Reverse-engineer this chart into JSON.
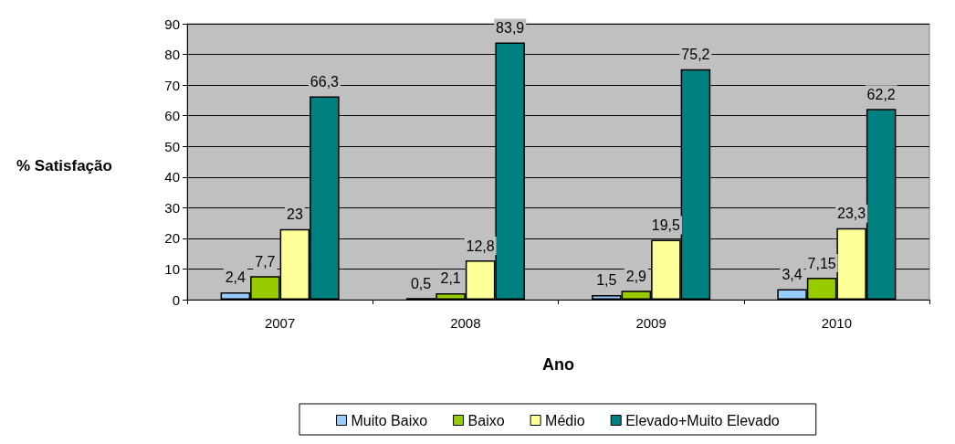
{
  "chart_data": {
    "type": "bar",
    "xlabel": "Ano",
    "ylabel": "% Satisfação",
    "categories": [
      "2007",
      "2008",
      "2009",
      "2010"
    ],
    "series": [
      {
        "name": "Muito Baixo",
        "color": "#99ccff",
        "values": [
          2.4,
          0.5,
          1.5,
          3.4
        ],
        "value_labels": [
          "2,4",
          "0,5",
          "1,5",
          "3,4"
        ]
      },
      {
        "name": "Baixo",
        "color": "#99cc00",
        "values": [
          7.7,
          2.1,
          2.9,
          7.15
        ],
        "value_labels": [
          "7,7",
          "2,1",
          "2,9",
          "7,15"
        ]
      },
      {
        "name": "Médio",
        "color": "#ffff99",
        "values": [
          23,
          12.8,
          19.5,
          23.3
        ],
        "value_labels": [
          "23",
          "12,8",
          "19,5",
          "23,3"
        ]
      },
      {
        "name": "Elevado+Muito Elevado",
        "color": "#008080",
        "values": [
          66.3,
          83.9,
          75.2,
          62.2
        ],
        "value_labels": [
          "66,3",
          "83,9",
          "75,2",
          "62,2"
        ]
      }
    ],
    "ylim": [
      0,
      90
    ],
    "yticks": [
      0,
      10,
      20,
      30,
      40,
      50,
      60,
      70,
      80,
      90
    ],
    "grid": "y",
    "legend": "bottom"
  }
}
